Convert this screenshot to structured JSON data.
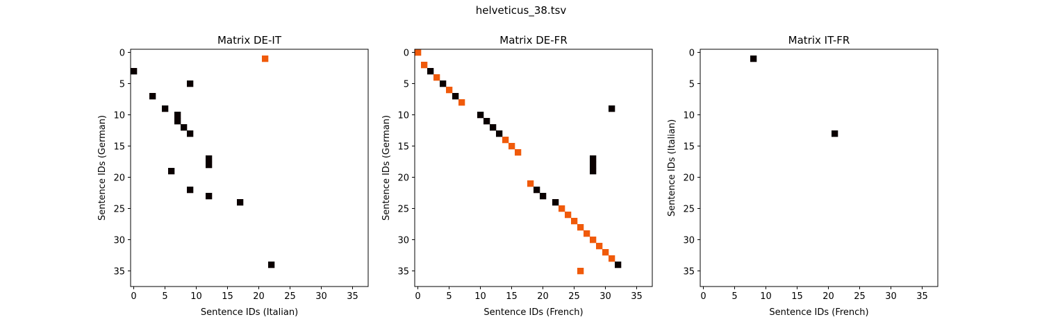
{
  "figure": {
    "title": "helveticus_38.tsv"
  },
  "chart_data": [
    {
      "type": "heatmap",
      "title": "Matrix DE-IT",
      "xlabel": "Sentence IDs (Italian)",
      "ylabel": "Sentence IDs (German)",
      "xlim": [
        -0.5,
        37.5
      ],
      "ylim": [
        37.5,
        -0.5
      ],
      "xticks": [
        0,
        5,
        10,
        15,
        20,
        25,
        30,
        35
      ],
      "yticks": [
        0,
        5,
        10,
        15,
        20,
        25,
        30,
        35
      ],
      "y_axis_inverted": true,
      "grid": false,
      "colors": {
        "black": "#0a0000",
        "orange": "#f05a0a"
      },
      "cells": [
        {
          "x": 21,
          "y": 1,
          "color": "orange"
        },
        {
          "x": 0,
          "y": 3,
          "color": "black"
        },
        {
          "x": 9,
          "y": 5,
          "color": "black"
        },
        {
          "x": 3,
          "y": 7,
          "color": "black"
        },
        {
          "x": 5,
          "y": 9,
          "color": "black"
        },
        {
          "x": 7,
          "y": 10,
          "color": "black"
        },
        {
          "x": 7,
          "y": 11,
          "color": "black"
        },
        {
          "x": 8,
          "y": 12,
          "color": "black"
        },
        {
          "x": 9,
          "y": 13,
          "color": "black"
        },
        {
          "x": 12,
          "y": 17,
          "color": "black"
        },
        {
          "x": 12,
          "y": 18,
          "color": "black"
        },
        {
          "x": 6,
          "y": 19,
          "color": "black"
        },
        {
          "x": 9,
          "y": 22,
          "color": "black"
        },
        {
          "x": 12,
          "y": 23,
          "color": "black"
        },
        {
          "x": 17,
          "y": 24,
          "color": "black"
        },
        {
          "x": 22,
          "y": 34,
          "color": "black"
        }
      ]
    },
    {
      "type": "heatmap",
      "title": "Matrix DE-FR",
      "xlabel": "Sentence IDs (French)",
      "ylabel": "Sentence IDs (German)",
      "xlim": [
        -0.5,
        37.5
      ],
      "ylim": [
        37.5,
        -0.5
      ],
      "xticks": [
        0,
        5,
        10,
        15,
        20,
        25,
        30,
        35
      ],
      "yticks": [
        0,
        5,
        10,
        15,
        20,
        25,
        30,
        35
      ],
      "y_axis_inverted": true,
      "grid": false,
      "colors": {
        "black": "#0a0000",
        "orange": "#f05a0a"
      },
      "cells": [
        {
          "x": 0,
          "y": 0,
          "color": "orange"
        },
        {
          "x": 1,
          "y": 2,
          "color": "orange"
        },
        {
          "x": 2,
          "y": 3,
          "color": "black"
        },
        {
          "x": 3,
          "y": 4,
          "color": "orange"
        },
        {
          "x": 4,
          "y": 5,
          "color": "black"
        },
        {
          "x": 5,
          "y": 6,
          "color": "orange"
        },
        {
          "x": 6,
          "y": 7,
          "color": "black"
        },
        {
          "x": 7,
          "y": 8,
          "color": "orange"
        },
        {
          "x": 31,
          "y": 9,
          "color": "black"
        },
        {
          "x": 10,
          "y": 10,
          "color": "black"
        },
        {
          "x": 11,
          "y": 11,
          "color": "black"
        },
        {
          "x": 12,
          "y": 12,
          "color": "black"
        },
        {
          "x": 13,
          "y": 13,
          "color": "black"
        },
        {
          "x": 14,
          "y": 14,
          "color": "orange"
        },
        {
          "x": 15,
          "y": 15,
          "color": "orange"
        },
        {
          "x": 16,
          "y": 16,
          "color": "orange"
        },
        {
          "x": 28,
          "y": 17,
          "color": "black"
        },
        {
          "x": 28,
          "y": 18,
          "color": "black"
        },
        {
          "x": 28,
          "y": 19,
          "color": "black"
        },
        {
          "x": 18,
          "y": 21,
          "color": "orange"
        },
        {
          "x": 19,
          "y": 22,
          "color": "black"
        },
        {
          "x": 20,
          "y": 23,
          "color": "black"
        },
        {
          "x": 22,
          "y": 24,
          "color": "black"
        },
        {
          "x": 23,
          "y": 25,
          "color": "orange"
        },
        {
          "x": 24,
          "y": 26,
          "color": "orange"
        },
        {
          "x": 25,
          "y": 27,
          "color": "orange"
        },
        {
          "x": 26,
          "y": 28,
          "color": "orange"
        },
        {
          "x": 27,
          "y": 29,
          "color": "orange"
        },
        {
          "x": 28,
          "y": 30,
          "color": "orange"
        },
        {
          "x": 29,
          "y": 31,
          "color": "orange"
        },
        {
          "x": 30,
          "y": 32,
          "color": "orange"
        },
        {
          "x": 31,
          "y": 33,
          "color": "orange"
        },
        {
          "x": 32,
          "y": 34,
          "color": "black"
        },
        {
          "x": 26,
          "y": 35,
          "color": "orange"
        }
      ]
    },
    {
      "type": "heatmap",
      "title": "Matrix IT-FR",
      "xlabel": "Sentence IDs (French)",
      "ylabel": "Sentence IDs (Italian)",
      "xlim": [
        -0.5,
        37.5
      ],
      "ylim": [
        37.5,
        -0.5
      ],
      "xticks": [
        0,
        5,
        10,
        15,
        20,
        25,
        30,
        35
      ],
      "yticks": [
        0,
        5,
        10,
        15,
        20,
        25,
        30,
        35
      ],
      "y_axis_inverted": true,
      "grid": false,
      "colors": {
        "black": "#0a0000",
        "orange": "#f05a0a"
      },
      "cells": [
        {
          "x": 8,
          "y": 1,
          "color": "black"
        },
        {
          "x": 21,
          "y": 13,
          "color": "black"
        }
      ]
    }
  ]
}
